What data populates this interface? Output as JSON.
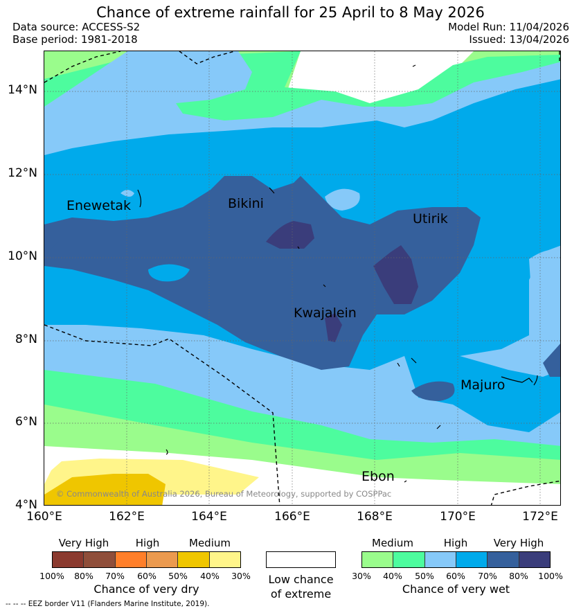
{
  "title": "Chance of extreme rainfall for 25 April to 8 May 2026",
  "header": {
    "data_source": "Data source: ACCESS-S2",
    "base_period": "Base period: 1981-2018",
    "model_run": "Model Run: 11/04/2026",
    "issued": "Issued: 13/04/2026"
  },
  "map": {
    "lat_labels": [
      "14°N",
      "12°N",
      "10°N",
      "8°N",
      "6°N",
      "4°N"
    ],
    "lon_labels": [
      "160°E",
      "162°E",
      "164°E",
      "166°E",
      "168°E",
      "170°E",
      "172°E"
    ],
    "places": {
      "enewetak": "Enewetak",
      "bikini": "Bikini",
      "utirik": "Utirik",
      "kwajalein": "Kwajalein",
      "majuro": "Majuro",
      "ebon": "Ebon"
    },
    "copyright": "© Commonwealth of Australia 2026, Bureau of Meteorology, supported by COSPPac"
  },
  "legend": {
    "dry": {
      "levels": [
        "Very High",
        "High",
        "Medium"
      ],
      "colors": [
        "#8b3a2f",
        "#8f4e3a",
        "#ff7f2a",
        "#eb9a4f",
        "#efc600",
        "#fff58a"
      ],
      "ticks": [
        "100%",
        "80%",
        "70%",
        "60%",
        "50%",
        "40%",
        "30%"
      ],
      "caption": "Chance of very dry"
    },
    "low": {
      "caption_line1": "Low chance",
      "caption_line2": "of extreme"
    },
    "wet": {
      "levels": [
        "Medium",
        "High",
        "Very High"
      ],
      "colors": [
        "#9afc8c",
        "#4dfc9e",
        "#86c9f9",
        "#00aaeb",
        "#35609c",
        "#3a3d7b"
      ],
      "ticks": [
        "30%",
        "40%",
        "50%",
        "60%",
        "70%",
        "80%",
        "100%"
      ],
      "caption": "Chance of very wet"
    },
    "footnote": "-- -- -- EEZ border V11 (Flanders Marine Institute, 2019)."
  }
}
